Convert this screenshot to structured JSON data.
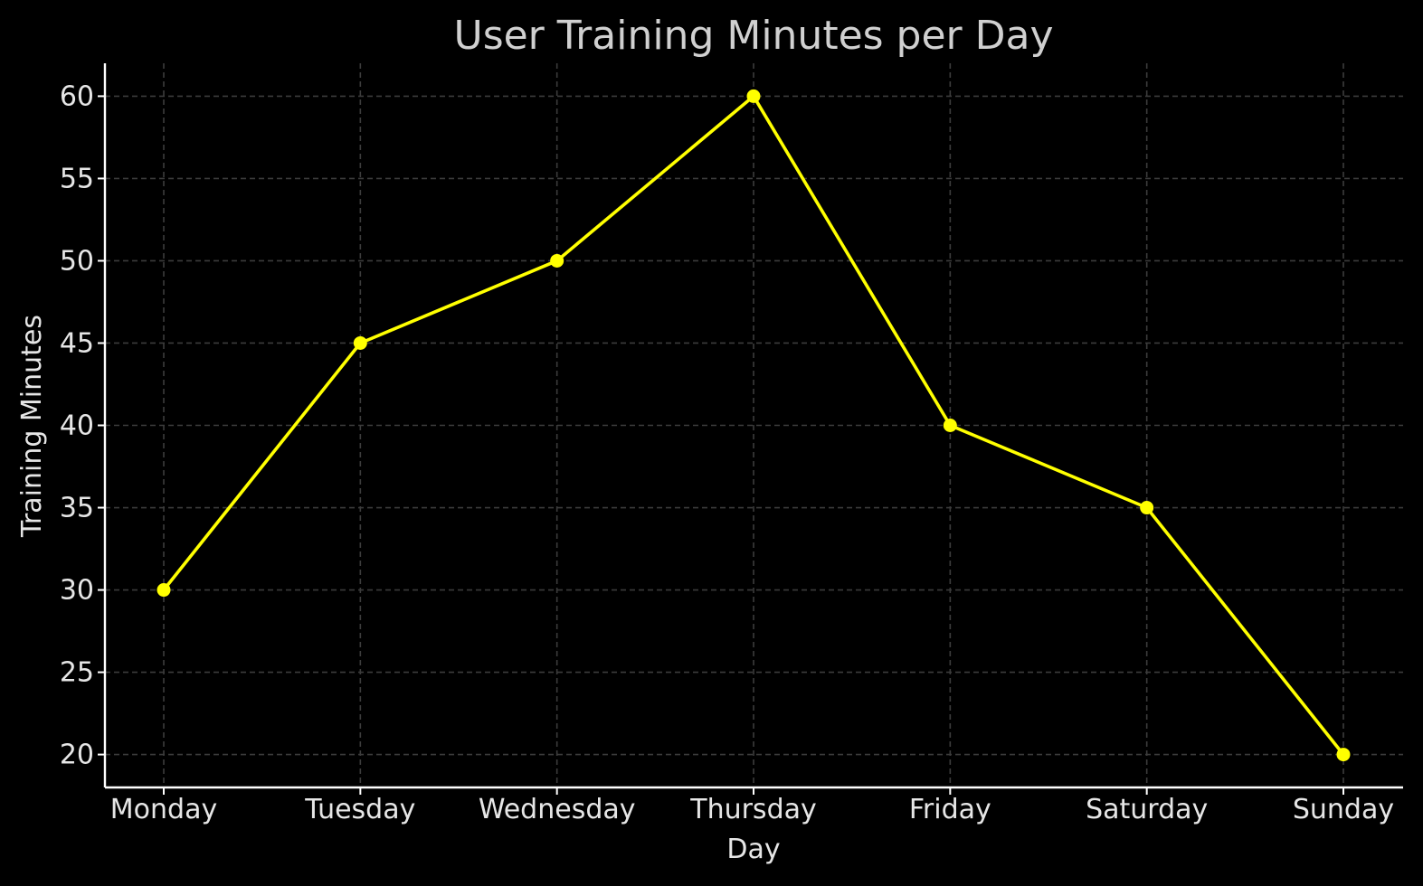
{
  "chart_data": {
    "type": "line",
    "title": "User Training Minutes per Day",
    "xlabel": "Day",
    "ylabel": "Training Minutes",
    "categories": [
      "Monday",
      "Tuesday",
      "Wednesday",
      "Thursday",
      "Friday",
      "Saturday",
      "Sunday"
    ],
    "series": [
      {
        "values": [
          30,
          45,
          50,
          60,
          40,
          35,
          20
        ],
        "color": "#ffff00",
        "marker": "circle"
      }
    ],
    "ylim": [
      18,
      62
    ],
    "yticks": [
      20,
      25,
      30,
      35,
      40,
      45,
      50,
      55,
      60
    ],
    "grid": true,
    "background": "#000000"
  }
}
